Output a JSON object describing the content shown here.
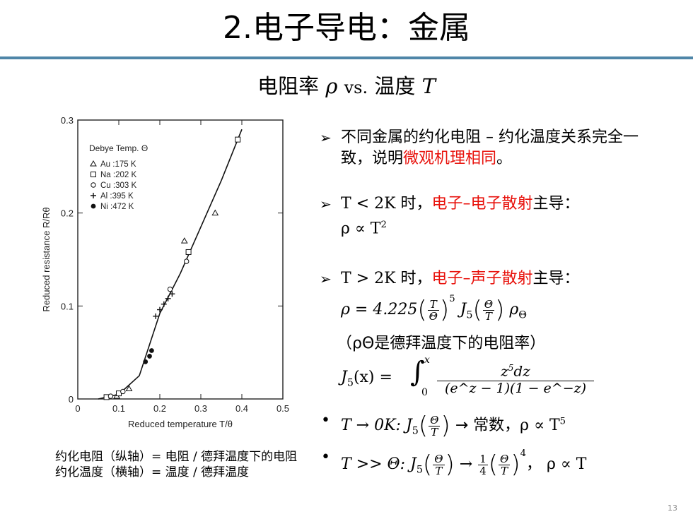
{
  "slide": {
    "title": "2.电子导电：金属",
    "subtitle_prefix": "电阻率",
    "subtitle_rho": "ρ",
    "subtitle_vs": "vs.",
    "subtitle_temp": "温度",
    "subtitle_T": "T",
    "page_number": "13"
  },
  "chart_data": {
    "type": "scatter",
    "xlabel": "Reduced temperature T/θ",
    "ylabel": "Reduced resistance R/Rθ",
    "xlim": [
      0,
      0.5
    ],
    "ylim": [
      0,
      0.3
    ],
    "x_ticks": [
      "0",
      "0.1",
      "0.2",
      "0.3",
      "0.4",
      "0.5"
    ],
    "y_ticks": [
      "0",
      "0.1",
      "0.2",
      "0.3"
    ],
    "legend_title": "Debye Temp. Θ",
    "legend_placement": "top-left",
    "series": [
      {
        "name": "Au :175 K",
        "marker": "triangle",
        "points": [
          [
            0.095,
            0.003
          ],
          [
            0.125,
            0.011
          ],
          [
            0.26,
            0.17
          ],
          [
            0.335,
            0.2
          ]
        ]
      },
      {
        "name": "Na :202 K",
        "marker": "square",
        "points": [
          [
            0.07,
            0.002
          ],
          [
            0.1,
            0.006
          ],
          [
            0.27,
            0.158
          ],
          [
            0.39,
            0.279
          ]
        ]
      },
      {
        "name": "Cu :303 K",
        "marker": "circle-open",
        "points": [
          [
            0.08,
            0.003
          ],
          [
            0.11,
            0.008
          ],
          [
            0.225,
            0.118
          ],
          [
            0.265,
            0.148
          ]
        ]
      },
      {
        "name": "Al :395 K",
        "marker": "plus",
        "points": [
          [
            0.19,
            0.089
          ],
          [
            0.2,
            0.096
          ],
          [
            0.21,
            0.102
          ],
          [
            0.22,
            0.108
          ],
          [
            0.23,
            0.113
          ]
        ]
      },
      {
        "name": "Ni :472 K",
        "marker": "circle-filled",
        "points": [
          [
            0.165,
            0.04
          ],
          [
            0.175,
            0.046
          ],
          [
            0.18,
            0.052
          ]
        ]
      }
    ],
    "curve": [
      [
        0.05,
        0.0
      ],
      [
        0.1,
        0.005
      ],
      [
        0.15,
        0.025
      ],
      [
        0.2,
        0.092
      ],
      [
        0.25,
        0.135
      ],
      [
        0.3,
        0.185
      ],
      [
        0.35,
        0.235
      ],
      [
        0.4,
        0.29
      ]
    ]
  },
  "caption": {
    "line1": "约化电阻（纵轴）= 电阻 / 德拜温度下的电阻",
    "line2": "约化温度（横轴）= 温度 / 德拜温度"
  },
  "bullets": {
    "b1_text": "不同金属的约化电阻 – 约化温度关系完全一致，说明",
    "b1_red": "微观机理相同",
    "b1_end": "。",
    "b2_pre": "T < 2K 时，",
    "b2_red": "电子–电子散射",
    "b2_post": "主导：",
    "b2_rel": "ρ ∝ T",
    "b2_exp": "2",
    "b3_pre": "T > 2K 时，",
    "b3_red": "电子–声子散射",
    "b3_post": "主导：",
    "formula_lhs": "ρ = 4.225",
    "formula_exp": "5",
    "formula_J": "J",
    "formula_sub": "5",
    "formula_rho": "ρ",
    "formula_rho_sub": "Θ",
    "note": "（ρΘ是德拜温度下的电阻率）",
    "J5_lhs": "J",
    "J5_sub": "5",
    "J5_arg": "(x) =",
    "J5_num": "z",
    "J5_num_exp": "5",
    "J5_num_rest": "dz",
    "J5_den": "(e^z − 1)(1 − e^−z)",
    "J5_upper": "x",
    "J5_lower": "0",
    "lim1_lhs": "T → 0K:",
    "lim1_rhs": "→ 常数，",
    "lim1_rel": "ρ ∝ T",
    "lim1_exp": "5",
    "lim2_lhs": "T >> Θ:",
    "lim2_rhs": "→",
    "lim2_exp": "4",
    "lim2_rel": "，  ρ ∝ T",
    "frac_T": "T",
    "frac_Theta": "Θ",
    "frac_one": "1",
    "frac_four": "4"
  }
}
